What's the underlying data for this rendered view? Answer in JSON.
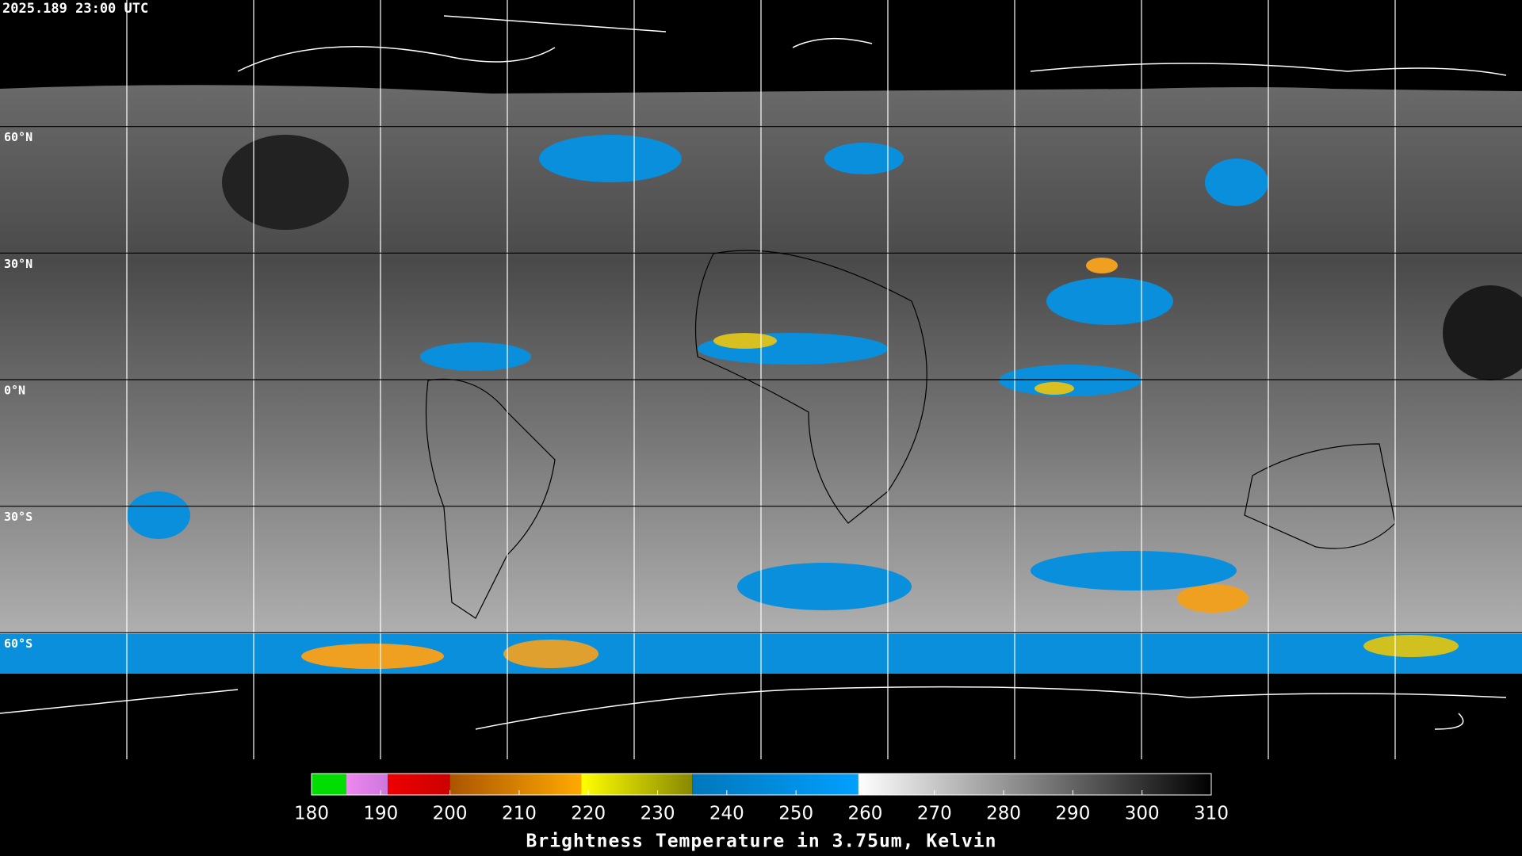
{
  "chart_data": {
    "type": "map",
    "title": "2025.189 23:00 UTC",
    "xlim": [
      -180,
      180
    ],
    "ylim": [
      -90,
      90
    ],
    "meridians": [
      -150,
      -120,
      -90,
      -60,
      -30,
      0,
      30,
      60,
      90,
      120,
      150
    ],
    "yticks": [
      {
        "value": 60,
        "label": "60°N"
      },
      {
        "value": 30,
        "label": "30°N"
      },
      {
        "value": 0,
        "label": "0°N"
      },
      {
        "value": -30,
        "label": "30°S"
      },
      {
        "value": -60,
        "label": "60°S"
      }
    ],
    "colorbar": {
      "label": "Brightness Temperature in 3.75um, Kelvin",
      "lim": [
        180,
        310
      ],
      "ticks": [
        180,
        190,
        200,
        210,
        220,
        230,
        240,
        250,
        260,
        270,
        280,
        290,
        300,
        310
      ],
      "segments": [
        {
          "from": 180,
          "to": 185,
          "colors": [
            "#00dd00",
            "#00dd00"
          ]
        },
        {
          "from": 185,
          "to": 191,
          "colors": [
            "#ee88ee",
            "#cc77dd"
          ]
        },
        {
          "from": 191,
          "to": 200,
          "colors": [
            "#ee0000",
            "#cc0000"
          ]
        },
        {
          "from": 200,
          "to": 219,
          "colors": [
            "#aa5500",
            "#ffaa00"
          ]
        },
        {
          "from": 219,
          "to": 235,
          "colors": [
            "#ffff00",
            "#888800"
          ]
        },
        {
          "from": 235,
          "to": 259,
          "colors": [
            "#0077bb",
            "#00a0ff"
          ]
        },
        {
          "from": 259,
          "to": 310,
          "colors": [
            "#ffffff",
            "#000000"
          ]
        }
      ]
    }
  }
}
